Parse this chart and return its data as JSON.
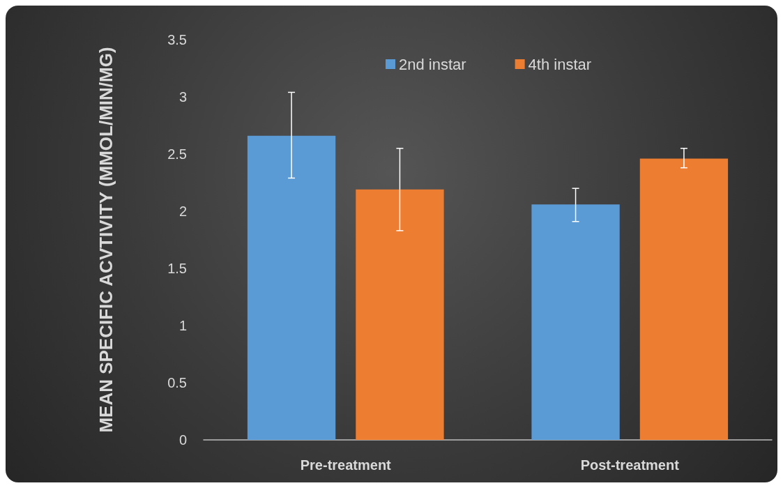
{
  "chart_data": {
    "type": "bar",
    "ylabel": "MEAN SPECIFIC ACVTIVITY (MMOL/MIN/MG)",
    "categories": [
      "Pre-treatment",
      "Post-treatment"
    ],
    "series": [
      {
        "name": "2nd instar",
        "color": "#5b9bd5",
        "values": [
          2.66,
          2.06
        ],
        "errors": [
          [
            2.29,
            3.04
          ],
          [
            1.91,
            2.2
          ]
        ]
      },
      {
        "name": "4th instar",
        "color": "#ed7d31",
        "values": [
          2.19,
          2.46
        ],
        "errors": [
          [
            1.83,
            2.55
          ],
          [
            2.38,
            2.55
          ]
        ]
      }
    ],
    "ylim": [
      0,
      3.5
    ],
    "yticks": [
      0,
      0.5,
      1,
      1.5,
      2,
      2.5,
      3,
      3.5
    ],
    "grid": false,
    "legend": "top"
  }
}
